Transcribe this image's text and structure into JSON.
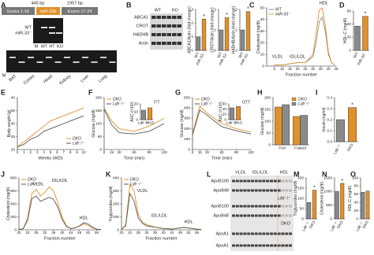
{
  "panel_labels": [
    "A",
    "B",
    "C",
    "D",
    "E",
    "F",
    "G",
    "H",
    "I",
    "J",
    "K",
    "L",
    "M",
    "N",
    "O"
  ],
  "panel_a": {
    "size_left": "445 bp",
    "size_right": "1957 bp",
    "exon_left": "Exons 1-16",
    "mir": "miR-33b",
    "exon_right": "Exons 17-24",
    "band_wt": "WT",
    "band_ko": "miR-33⁻",
    "lanes": [
      "M",
      "WT",
      "HT",
      "KO"
    ],
    "tissues": [
      "BAT",
      "Cortex",
      "Heart",
      "Kidney",
      "Liver",
      "Lung"
    ],
    "m": "M"
  },
  "panel_b": {
    "header": [
      "WT",
      "KO"
    ],
    "rows": [
      "ABCA1",
      "CROT",
      "HADHB",
      "Actin"
    ]
  },
  "panel_l": {
    "fractions": [
      "VLDL",
      "IDL/LDL",
      "HDL"
    ],
    "rows": [
      "ApoB100",
      "ApoB48",
      "ApoB100",
      "ApoB48",
      "ApoA1",
      "ApoA1"
    ],
    "groups": [
      "Ldlr⁻/⁻",
      "DKO"
    ]
  },
  "chart_data": [
    {
      "type": "bar",
      "ylabel": "ABCA1/Actin (fold change)",
      "categories": [
        "WT",
        "miR-33⁻"
      ],
      "values": [
        1,
        2.3
      ],
      "colors": [
        "#8a8a8a",
        "#e0912b"
      ],
      "ylim": [
        0,
        3
      ],
      "yticks": [
        0,
        1,
        2,
        3
      ],
      "rotate_labels": true,
      "annotations": [
        {
          "text": "*",
          "at": "miR-33⁻"
        }
      ]
    },
    {
      "type": "bar",
      "ylabel": "CROT/Actin (fold change)",
      "categories": [
        "WT",
        "miR-33⁻"
      ],
      "values": [
        1,
        1.6
      ],
      "colors": [
        "#8a8a8a",
        "#e0912b"
      ],
      "ylim": [
        0,
        2
      ],
      "yticks": [
        0,
        1,
        2
      ],
      "rotate_labels": true,
      "annotations": [
        {
          "text": "*",
          "at": "miR-33⁻"
        }
      ]
    },
    {
      "type": "bar",
      "ylabel": "HADHB/Actin (fold change)",
      "categories": [
        "WT",
        "miR-33⁻"
      ],
      "values": [
        1,
        1.9
      ],
      "colors": [
        "#8a8a8a",
        "#e0912b"
      ],
      "ylim": [
        0,
        2
      ],
      "yticks": [
        0,
        1,
        2
      ],
      "rotate_labels": true,
      "annotations": [
        {
          "text": "*",
          "at": "miR-33⁻"
        }
      ]
    },
    {
      "type": "line",
      "ylabel": "Cholesterol (mg/dl)",
      "xlabel": "Fraction number",
      "x": [
        5,
        10,
        15,
        20,
        25,
        30,
        32,
        34,
        36,
        38,
        40,
        42,
        44
      ],
      "series": [
        {
          "name": "WT",
          "color": "#8a8a8a",
          "values": [
            1,
            1,
            2,
            3,
            3,
            8,
            20,
            38,
            42,
            30,
            10,
            3,
            1
          ]
        },
        {
          "name": "miR-33⁻",
          "color": "#e0912b",
          "values": [
            1,
            1,
            2,
            3,
            3,
            10,
            28,
            48,
            50,
            35,
            12,
            3,
            1
          ]
        }
      ],
      "xlim": [
        0,
        45
      ],
      "xticks": [
        5,
        10,
        15,
        20,
        25,
        30,
        35,
        40,
        45
      ],
      "ylim": [
        0,
        50
      ],
      "yticks": [
        0,
        10,
        20,
        30,
        40,
        50
      ],
      "legend": "upper left",
      "annotations": [
        {
          "text": "VLDL",
          "x": 7,
          "y": 8
        },
        {
          "text": "IDL/LDL",
          "x": 20,
          "y": 8
        },
        {
          "text": "HDL",
          "x": 37,
          "y": 54
        }
      ]
    },
    {
      "type": "bar",
      "ylabel": "HDL-C (mg/dl)",
      "categories": [
        "WT",
        "miR-33⁻"
      ],
      "values": [
        37,
        52
      ],
      "colors": [
        "#8a8a8a",
        "#e0912b"
      ],
      "ylim": [
        0,
        60
      ],
      "yticks": [
        0,
        20,
        40,
        60
      ],
      "rotate_labels": true,
      "annotations": [
        {
          "text": "*",
          "at": "miR-33⁻"
        }
      ]
    },
    {
      "type": "line",
      "ylabel": "Body weight (g)",
      "xlabel": "Weeks (WD)",
      "x": [
        0,
        1,
        2,
        3,
        4,
        5,
        6,
        7,
        8,
        9,
        10
      ],
      "series": [
        {
          "name": "DKO",
          "color": "#e0912b",
          "values": [
            21,
            23,
            25,
            27,
            29,
            31,
            32,
            33,
            34,
            35,
            36
          ]
        },
        {
          "name": "Ldlr⁻/⁻",
          "color": "#555555",
          "values": [
            21,
            22,
            24,
            25,
            27,
            28,
            29,
            30,
            31,
            32,
            33
          ]
        }
      ],
      "xlim": [
        0,
        10
      ],
      "xticks": [
        0,
        1,
        2,
        3,
        4,
        5,
        6,
        7,
        8,
        9,
        10
      ],
      "ylim": [
        20,
        40
      ],
      "yticks": [
        20,
        25,
        30,
        35,
        40
      ],
      "legend": "lower right"
    },
    {
      "type": "line",
      "ylabel": "Glucose (mg/dl)",
      "xlabel": "Time (min)",
      "x": [
        0,
        15,
        30,
        60,
        90,
        120
      ],
      "series": [
        {
          "name": "DKO",
          "color": "#e0912b",
          "values": [
            160,
            110,
            80,
            70,
            90,
            120
          ]
        },
        {
          "name": "Ldlr⁻/⁻",
          "color": "#555555",
          "values": [
            155,
            95,
            65,
            60,
            70,
            100
          ]
        }
      ],
      "xlim": [
        0,
        120
      ],
      "xticks": [
        0,
        15,
        30,
        60,
        90,
        120
      ],
      "ylim": [
        0,
        200
      ],
      "yticks": [
        0,
        50,
        100,
        150,
        200
      ],
      "legend": "upper left"
    },
    {
      "type": "bar",
      "title": "ITT",
      "ylabel": "AUC (×10³)",
      "categories": [
        "Ldlr⁻/⁻",
        "DKO"
      ],
      "values": [
        12,
        15
      ],
      "colors": [
        "#8a8a8a",
        "#e0912b"
      ],
      "ylim": [
        0,
        20
      ],
      "yticks": [
        0,
        10,
        20
      ]
    },
    {
      "type": "line",
      "ylabel": "Glucose (mg/dl)",
      "xlabel": "Time (min)",
      "x": [
        0,
        15,
        30,
        60,
        90,
        120
      ],
      "series": [
        {
          "name": "DKO",
          "color": "#e0912b",
          "values": [
            150,
            420,
            350,
            250,
            200,
            170
          ]
        },
        {
          "name": "Ldlr⁻/⁻",
          "color": "#555555",
          "values": [
            140,
            380,
            330,
            220,
            180,
            150
          ]
        }
      ],
      "xlim": [
        0,
        120
      ],
      "xticks": [
        0,
        15,
        30,
        60,
        90,
        120
      ],
      "ylim": [
        0,
        500
      ],
      "yticks": [
        0,
        100,
        200,
        300,
        400,
        500
      ],
      "legend": "upper left"
    },
    {
      "type": "bar",
      "title": "GTT",
      "ylabel": "AUC (×10³)",
      "categories": [
        "Ldlr⁻/⁻",
        "DKO"
      ],
      "values": [
        45,
        50
      ],
      "colors": [
        "#8a8a8a",
        "#e0912b"
      ],
      "ylim": [
        0,
        60
      ],
      "yticks": [
        0,
        20,
        40,
        60
      ]
    },
    {
      "type": "bar",
      "ylabel": "Glucose (mg/dl)",
      "categories": [
        "Fed",
        "Fasted"
      ],
      "series": [
        {
          "name": "DKO",
          "color": "#e0912b",
          "values": [
            160,
            120
          ]
        },
        {
          "name": "Ldlr⁻/⁻",
          "color": "#8a8a8a",
          "values": [
            170,
            125
          ]
        }
      ],
      "ylim": [
        0,
        200
      ],
      "yticks": [
        0,
        50,
        100,
        150,
        200
      ],
      "legend": "upper right"
    },
    {
      "type": "bar",
      "ylabel": "Insulin (ng/ml)",
      "categories": [
        "Ldlr⁻/⁻",
        "DKO"
      ],
      "values": [
        0.2,
        0.31
      ],
      "colors": [
        "#8a8a8a",
        "#e0912b"
      ],
      "ylim": [
        0,
        0.4
      ],
      "yticks": [
        {
          "value": 0,
          "label": "0.0"
        },
        0.1,
        0.2,
        0.3,
        0.4
      ],
      "rotate_labels": true,
      "annotations": [
        {
          "text": "*",
          "at": "DKO"
        }
      ]
    },
    {
      "type": "line",
      "ylabel": "Cholesterol (mg/dl)",
      "xlabel": "Fraction number",
      "x": [
        20,
        22,
        24,
        26,
        28,
        30,
        32,
        34,
        36,
        38,
        40,
        42,
        44,
        46,
        48,
        50,
        52,
        54,
        56,
        58
      ],
      "series": [
        {
          "name": "DKO",
          "color": "#e0912b",
          "values": [
            5,
            20,
            180,
            560,
            620,
            520,
            580,
            660,
            600,
            420,
            200,
            60,
            20,
            30,
            60,
            90,
            70,
            30,
            10,
            5
          ]
        },
        {
          "name": "Ldlr⁻/⁻",
          "color": "#555555",
          "values": [
            5,
            15,
            150,
            480,
            520,
            440,
            470,
            500,
            470,
            350,
            160,
            50,
            20,
            30,
            60,
            110,
            90,
            40,
            10,
            5
          ]
        }
      ],
      "xlim": [
        20,
        58
      ],
      "xticks": [
        20,
        24,
        28,
        32,
        36,
        40,
        44,
        48,
        52,
        56
      ],
      "ylim": [
        0,
        800
      ],
      "yticks": [
        0,
        200,
        400,
        600,
        800
      ],
      "legend": "upper left",
      "annotations": [
        {
          "text": "VLDL",
          "x": 29,
          "y": 700
        },
        {
          "text": "IDL/LDL",
          "x": 39,
          "y": 760
        },
        {
          "text": "HDL",
          "x": 50,
          "y": 180
        }
      ]
    },
    {
      "type": "line",
      "ylabel": "Triglycerides (mg/dl)",
      "xlabel": "Fraction number",
      "x": [
        20,
        22,
        24,
        26,
        28,
        30,
        32,
        34,
        36,
        38,
        40,
        42,
        44,
        46,
        48,
        50,
        52,
        54,
        56,
        58
      ],
      "series": [
        {
          "name": "DKO",
          "color": "#e0912b",
          "values": [
            5,
            40,
            350,
            300,
            120,
            60,
            40,
            30,
            20,
            15,
            10,
            8,
            6,
            10,
            15,
            20,
            15,
            10,
            5,
            3
          ]
        },
        {
          "name": "Ldlr⁻/⁻",
          "color": "#555555",
          "values": [
            5,
            30,
            280,
            220,
            90,
            50,
            30,
            25,
            20,
            15,
            10,
            8,
            6,
            10,
            15,
            18,
            14,
            9,
            5,
            3
          ]
        }
      ],
      "xlim": [
        20,
        58
      ],
      "xticks": [
        20,
        24,
        28,
        32,
        36,
        40,
        44,
        48,
        52,
        56
      ],
      "ylim": [
        0,
        400
      ],
      "yticks": [
        0,
        100,
        200,
        300,
        400
      ],
      "legend": "upper left",
      "annotations": [
        {
          "text": "VLDL",
          "x": 30,
          "y": 300
        },
        {
          "text": "IDL/LDL",
          "x": 38,
          "y": 110
        },
        {
          "text": "HDL",
          "x": 52,
          "y": 60
        }
      ]
    },
    {
      "type": "bar",
      "ylabel": "Triglycerides (mg/dl)",
      "categories": [
        "Ldlr⁻/⁻",
        "DKO"
      ],
      "values": [
        80,
        140
      ],
      "colors": [
        "#8a8a8a",
        "#e0912b"
      ],
      "ylim": [
        0,
        200
      ],
      "yticks": [
        0,
        50,
        100,
        150,
        200
      ],
      "rotate_labels": true,
      "annotations": [
        {
          "text": "*",
          "at": "DKO"
        }
      ]
    },
    {
      "type": "bar",
      "ylabel": "Cholesterol (mg/dl)",
      "categories": [
        "Ldlr⁻/⁻",
        "DKO"
      ],
      "values": [
        1000,
        1300
      ],
      "colors": [
        "#8a8a8a",
        "#e0912b"
      ],
      "ylim": [
        0,
        1500
      ],
      "yticks": [
        0,
        500,
        1000,
        1500
      ],
      "rotate_labels": true,
      "annotations": [
        {
          "text": "*",
          "at": "DKO"
        }
      ]
    },
    {
      "type": "bar",
      "ylabel": "HDL-C (mg/dl)",
      "categories": [
        "Ldlr⁻/⁻",
        "DKO"
      ],
      "values": [
        65,
        68
      ],
      "colors": [
        "#8a8a8a",
        "#e0912b"
      ],
      "ylim": [
        0,
        100
      ],
      "yticks": [
        0,
        20,
        40,
        60,
        80,
        100
      ],
      "rotate_labels": true
    }
  ]
}
